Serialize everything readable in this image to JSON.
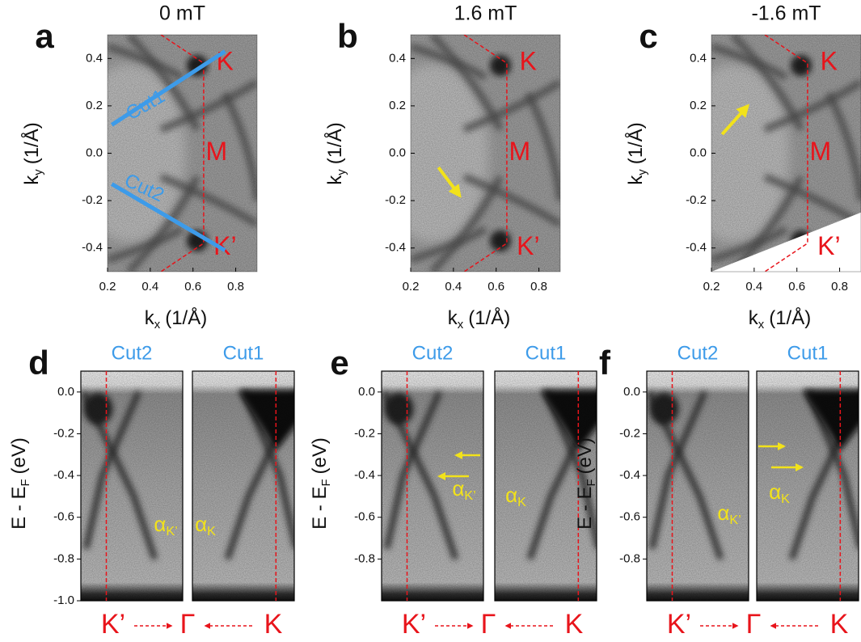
{
  "top_panels": [
    {
      "label": "a",
      "title": "0 mT",
      "ylabel": {
        "main": "k",
        "sub": "y",
        "unit": "(1/Å)"
      },
      "xlabel": {
        "main": "k",
        "sub": "x",
        "unit": "(1/Å)"
      },
      "xticks": [
        "0.2",
        "0.4",
        "0.6",
        "0.8"
      ],
      "yticks": [
        "0.4",
        "0.2",
        "0.0",
        "-0.2",
        "-0.4"
      ],
      "points": [
        "K",
        "M",
        "K’"
      ],
      "cuts": [
        "Cut1",
        "Cut2"
      ]
    },
    {
      "label": "b",
      "title": "1.6 mT",
      "ylabel": {
        "main": "k",
        "sub": "y",
        "unit": "(1/Å)"
      },
      "xlabel": {
        "main": "k",
        "sub": "x",
        "unit": "(1/Å)"
      },
      "xticks": [
        "0.2",
        "0.4",
        "0.6",
        "0.8"
      ],
      "yticks": [
        "0.4",
        "0.2",
        "0.0",
        "-0.2",
        "-0.4"
      ],
      "points": [
        "K",
        "M",
        "K’"
      ]
    },
    {
      "label": "c",
      "title": "-1.6 mT",
      "ylabel": {
        "main": "k",
        "sub": "y",
        "unit": "(1/Å)"
      },
      "xlabel": {
        "main": "k",
        "sub": "x",
        "unit": "(1/Å)"
      },
      "xticks": [
        "0.2",
        "0.4",
        "0.6",
        "0.8"
      ],
      "yticks": [
        "0.4",
        "0.2",
        "0.0",
        "-0.2",
        "-0.4"
      ],
      "points": [
        "K",
        "M",
        "K’"
      ]
    }
  ],
  "bottom_panels": [
    {
      "label": "d",
      "cuts": [
        "Cut2",
        "Cut1"
      ],
      "ylabel": {
        "main": "E - E",
        "sub": "F",
        "unit": "(eV)"
      },
      "yticks": [
        "0.0",
        "-0.2",
        "-0.4",
        "-0.6",
        "-0.8",
        "-1.0"
      ],
      "alphas": [
        {
          "main": "α",
          "sub": "K’"
        },
        {
          "main": "α",
          "sub": "K"
        }
      ],
      "path": [
        "K’",
        "Γ",
        "K"
      ]
    },
    {
      "label": "e",
      "cuts": [
        "Cut2",
        "Cut1"
      ],
      "ylabel": {
        "main": "E - E",
        "sub": "F",
        "unit": "(eV)"
      },
      "yticks": [
        "0.0",
        "-0.2",
        "-0.4",
        "-0.6",
        "-0.8"
      ],
      "alphas": [
        {
          "main": "α",
          "sub": "K’"
        },
        {
          "main": "α",
          "sub": "K"
        }
      ],
      "path": [
        "K’",
        "Γ",
        "K"
      ]
    },
    {
      "label": "f",
      "cuts": [
        "Cut2",
        "Cut1"
      ],
      "ylabel": {
        "main": "E - E",
        "sub": "F",
        "unit": "(eV)"
      },
      "yticks": [
        "0.0",
        "-0.2",
        "-0.4",
        "-0.6",
        "-0.8"
      ],
      "alphas": [
        {
          "main": "α",
          "sub": "K’"
        },
        {
          "main": "α",
          "sub": "K"
        }
      ],
      "path": [
        "K’",
        "Γ",
        "K"
      ]
    }
  ]
}
